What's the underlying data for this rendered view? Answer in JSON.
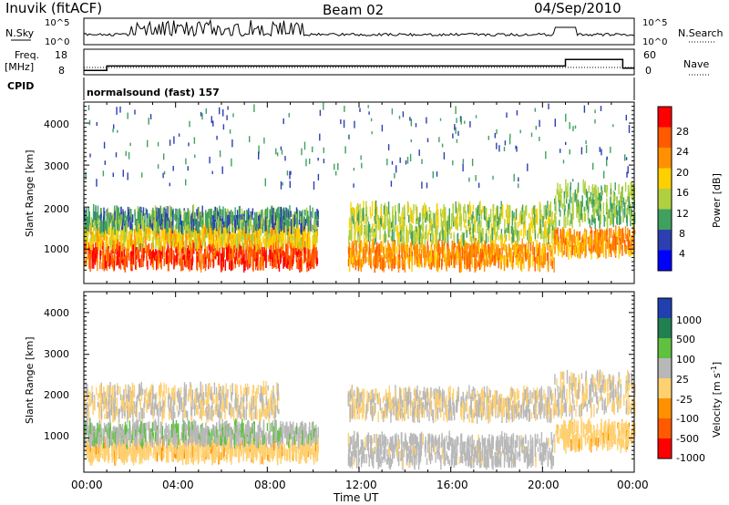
{
  "header": {
    "station": "Inuvik  (fitACF)",
    "beam": "Beam 02",
    "date": "04/Sep/2010"
  },
  "strip_nsky": {
    "left_label": "N.Sky",
    "left_ticks": [
      "10^5",
      "10^0"
    ],
    "right_label": "N.Search",
    "right_ticks": [
      "10^5",
      "10^0"
    ]
  },
  "strip_freq": {
    "left_label_1": "Freq.",
    "left_label_2": "[MHz]",
    "left_ticks": [
      "18",
      "8"
    ],
    "right_label": "Nave",
    "right_ticks": [
      "60",
      "0"
    ]
  },
  "cpid": {
    "label": "CPID",
    "program": "normalsound (fast) 157"
  },
  "power_panel": {
    "ylabel": "Slant Range [km]",
    "yticks": [
      "4000",
      "3000",
      "2000",
      "1000"
    ],
    "colorbar_label": "Power [dB]",
    "colorbar_ticks": [
      "28",
      "24",
      "20",
      "16",
      "12",
      "8",
      "4"
    ],
    "colorbar_colors": [
      "#ff0000",
      "#ff5a00",
      "#ff9000",
      "#ffd000",
      "#b0d040",
      "#40a060",
      "#2b3fb0",
      "#0000ff"
    ]
  },
  "velocity_panel": {
    "ylabel": "Slant Range [km]",
    "yticks": [
      "4000",
      "3000",
      "2000",
      "1000"
    ],
    "colorbar_label": "Velocity [m s",
    "colorbar_label_sup": "-1",
    "colorbar_label_end": "]",
    "colorbar_ticks": [
      "1000",
      "500",
      "100",
      "25",
      "-25",
      "-100",
      "-500",
      "-1000"
    ],
    "colorbar_colors": [
      "#2040b0",
      "#208050",
      "#60c040",
      "#b8b8b8",
      "#ffd070",
      "#ff9000",
      "#ff5a00",
      "#ff0000"
    ]
  },
  "time_axis": {
    "label": "Time UT",
    "ticks": [
      "00:00",
      "04:00",
      "08:00",
      "12:00",
      "16:00",
      "20:00",
      "00:00"
    ]
  },
  "chart_data": {
    "type": "heatmap",
    "title": "Inuvik (fitACF) Beam 02 04/Sep/2010",
    "xlabel": "Time UT",
    "x_range_hours": [
      0,
      24
    ],
    "ylabel": "Slant Range [km]",
    "ylim": [
      180,
      4500
    ],
    "panels": [
      {
        "name": "Power",
        "units": "dB",
        "color_range": [
          0,
          32
        ],
        "regions": [
          {
            "t": [
              0,
              10.2
            ],
            "range_km": [
              600,
              1100
            ],
            "value_db": 27
          },
          {
            "t": [
              0,
              10.2
            ],
            "range_km": [
              1100,
              1500
            ],
            "value_db": 18
          },
          {
            "t": [
              0,
              10.2
            ],
            "range_km": [
              1500,
              1900
            ],
            "value_db": 10
          },
          {
            "t": [
              11.5,
              20.5
            ],
            "range_km": [
              600,
              1100
            ],
            "value_db": 22
          },
          {
            "t": [
              11.5,
              20.5
            ],
            "range_km": [
              1200,
              2000
            ],
            "value_db": 14
          },
          {
            "t": [
              20.5,
              24
            ],
            "range_km": [
              900,
              1400
            ],
            "value_db": 22
          },
          {
            "t": [
              20.5,
              24
            ],
            "range_km": [
              1600,
              2500
            ],
            "value_db": 12
          },
          {
            "t": [
              0,
              24
            ],
            "range_km": [
              2500,
              4400
            ],
            "value_db": 8
          }
        ]
      },
      {
        "name": "Velocity",
        "units": "m/s",
        "color_range": [
          -1000,
          1000
        ],
        "regions": [
          {
            "t": [
              0,
              10.2
            ],
            "range_km": [
              500,
              900
            ],
            "value_ms": -150
          },
          {
            "t": [
              0,
              10.2
            ],
            "range_km": [
              900,
              1300
            ],
            "value_ms": 200
          },
          {
            "t": [
              0,
              8.5
            ],
            "range_km": [
              1500,
              2200
            ],
            "value_ms": 0
          },
          {
            "t": [
              11.5,
              20.5
            ],
            "range_km": [
              400,
              1000
            ],
            "value_ms": 100
          },
          {
            "t": [
              11.5,
              20.5
            ],
            "range_km": [
              1500,
              2100
            ],
            "value_ms": 0
          },
          {
            "t": [
              20.5,
              24
            ],
            "range_km": [
              800,
              1300
            ],
            "value_ms": -150
          },
          {
            "t": [
              20.5,
              24
            ],
            "range_km": [
              1600,
              2500
            ],
            "value_ms": 0
          }
        ]
      }
    ],
    "frequency_mhz": {
      "t": [
        0,
        1,
        4.5,
        20.5,
        21,
        22.5,
        23.5,
        24
      ],
      "values": [
        10,
        12,
        12,
        12,
        15,
        15,
        11,
        13
      ]
    },
    "nave": {
      "t": [
        0,
        24
      ],
      "values": [
        20,
        20
      ]
    }
  }
}
